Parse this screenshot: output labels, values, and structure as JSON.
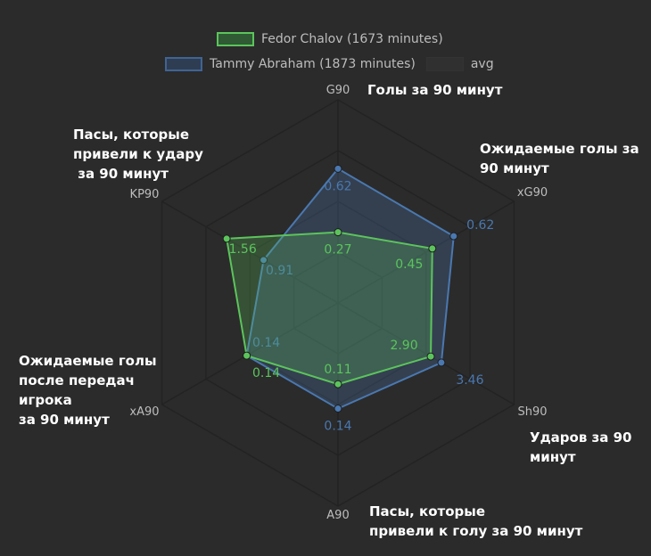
{
  "chart_data": {
    "type": "radar",
    "axes": [
      "G90",
      "xG90",
      "Sh90",
      "A90",
      "xA90",
      "KP90"
    ],
    "axis_ranges": [
      [
        -0.12,
        1.0
      ],
      [
        -0.3,
        1.1
      ],
      [
        -2.0,
        7.3
      ],
      [
        0.01,
        0.26
      ],
      [
        0.0,
        0.27
      ],
      [
        -0.4,
        2.7
      ]
    ],
    "series": [
      {
        "name": "Tammy Abraham (1873 minutes)",
        "values": [
          0.62,
          0.62,
          3.46,
          0.14,
          0.14,
          0.91
        ],
        "labels": [
          "0.62",
          "0.62",
          "3.46",
          "0.14",
          "0.14",
          "0.91"
        ],
        "color": "#4a78b0"
      },
      {
        "name": "Fedor Chalov (1673 minutes)",
        "values": [
          0.27,
          0.45,
          2.9,
          0.11,
          0.14,
          1.56
        ],
        "labels": [
          "0.27",
          "0.45",
          "2.90",
          "0.11",
          "0.14",
          "1.56"
        ],
        "color": "#5cc45c"
      }
    ],
    "legend": [
      "Fedor Chalov (1673 minutes)",
      "Tammy Abraham (1873 minutes)",
      "avg"
    ],
    "legend_placement": "top",
    "annotations": [
      "Голы за 90 минут",
      "Ожидаемые голы за\n90 минут",
      "Ударов за 90\nминут",
      "Пасы, которые\nпривели к голу за 90 минут",
      "Ожидаемые голы\nпосле передач\nигрока\nза 90 минут",
      "Пасы, которые\nпривели к удару\n за 90 минут"
    ]
  }
}
